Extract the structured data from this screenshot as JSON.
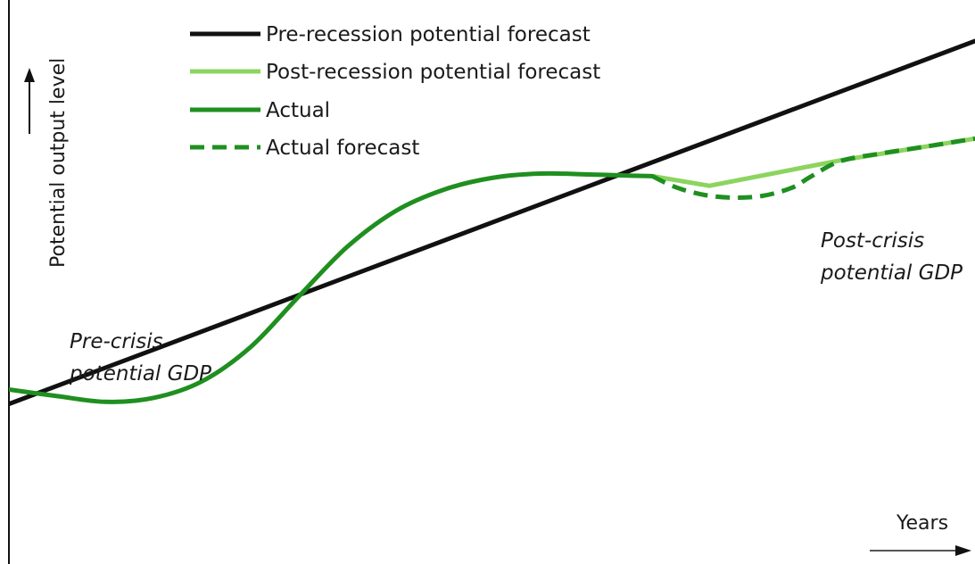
{
  "chart_data": {
    "type": "line",
    "title": "",
    "xlabel": "Years",
    "ylabel": "Potential output level",
    "xlim": [
      0,
      100
    ],
    "ylim": [
      0,
      100
    ],
    "grid": false,
    "legend_placement": "top-left",
    "series": [
      {
        "name": "Pre-recession potential forecast",
        "color": "#111111",
        "style": "solid",
        "x": [
          0,
          100
        ],
        "y": [
          17,
          100
        ]
      },
      {
        "name": "Post-recession potential forecast",
        "color": "#8cd45f",
        "style": "solid",
        "x": [
          66.6,
          72.5,
          86,
          100
        ],
        "y": [
          69.1,
          66.9,
          72.7,
          77.7
        ]
      },
      {
        "name": "Actual",
        "color": "#1f8f1f",
        "style": "solid",
        "x": [
          0,
          5,
          10,
          15,
          20,
          25,
          30,
          35,
          40,
          45,
          50,
          55,
          60,
          63,
          66.6
        ],
        "y": [
          20.3,
          18.8,
          17.5,
          18.4,
          22.2,
          30,
          41.6,
          52.9,
          61.1,
          66,
          68.7,
          69.7,
          69.5,
          69.3,
          69.1
        ]
      },
      {
        "name": "Actual forecast",
        "color": "#1f8f1f",
        "style": "dashed",
        "x": [
          66.6,
          69,
          72,
          75,
          78,
          81,
          83,
          86,
          90,
          95,
          100
        ],
        "y": [
          69.1,
          66.6,
          64.8,
          64.2,
          64.6,
          66.4,
          69,
          72.5,
          74.2,
          75.9,
          77.7
        ]
      }
    ],
    "annotations": [
      {
        "lines": [
          "Pre-crisis",
          "potential GDP"
        ]
      },
      {
        "lines": [
          "Post-crisis",
          "potential GDP"
        ]
      }
    ]
  }
}
